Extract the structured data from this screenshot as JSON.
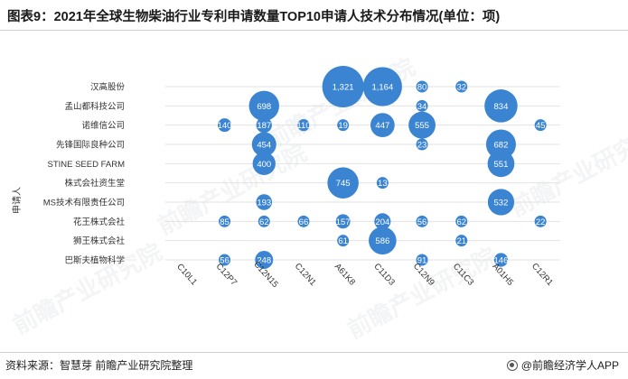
{
  "title": "图表9：2021年全球生物柴油行业专利申请数量TOP10申请人技术分布情况(单位：项)",
  "source": "资料来源：智慧芽 前瞻产业研究院整理",
  "brand": "@前瞻经济学人APP",
  "watermark": "前瞻产业研究院",
  "colors": {
    "bubble": "#3a84d2",
    "grid": "#e2e2e2",
    "text": "#333333"
  },
  "chart_data": {
    "type": "bubble",
    "ylabel": "申请人",
    "xlabel": "",
    "categories_y": [
      "汉高股份",
      "孟山都科技公司",
      "诺维信公司",
      "先锋国际良种公司",
      "STINE SEED FARM",
      "株式会社资生堂",
      "MS技术有限责任公司",
      "花王株式会社",
      "狮王株式会社",
      "巴斯夫植物科学"
    ],
    "categories_x": [
      "C10L1",
      "C12P7",
      "C12N15",
      "C12N1",
      "A61K8",
      "C11D3",
      "C12N9",
      "C11C3",
      "A01H5",
      "C12R1"
    ],
    "points": [
      {
        "y": "汉高股份",
        "x": "A61K8",
        "value": 1321
      },
      {
        "y": "汉高股份",
        "x": "C11D3",
        "value": 1164
      },
      {
        "y": "汉高股份",
        "x": "C12N9",
        "value": 80
      },
      {
        "y": "汉高股份",
        "x": "C11C3",
        "value": 32
      },
      {
        "y": "孟山都科技公司",
        "x": "C12N15",
        "value": 698
      },
      {
        "y": "孟山都科技公司",
        "x": "C12N9",
        "value": 34
      },
      {
        "y": "孟山都科技公司",
        "x": "A01H5",
        "value": 834
      },
      {
        "y": "诺维信公司",
        "x": "C12P7",
        "value": 140
      },
      {
        "y": "诺维信公司",
        "x": "C12N15",
        "value": 187
      },
      {
        "y": "诺维信公司",
        "x": "C12N1",
        "value": 110
      },
      {
        "y": "诺维信公司",
        "x": "A61K8",
        "value": 19
      },
      {
        "y": "诺维信公司",
        "x": "C11D3",
        "value": 447
      },
      {
        "y": "诺维信公司",
        "x": "C12N9",
        "value": 555
      },
      {
        "y": "诺维信公司",
        "x": "C12R1",
        "value": 45
      },
      {
        "y": "先锋国际良种公司",
        "x": "C12N15",
        "value": 454
      },
      {
        "y": "先锋国际良种公司",
        "x": "C12N9",
        "value": 23
      },
      {
        "y": "先锋国际良种公司",
        "x": "A01H5",
        "value": 682
      },
      {
        "y": "STINE SEED FARM",
        "x": "C12N15",
        "value": 400
      },
      {
        "y": "STINE SEED FARM",
        "x": "A01H5",
        "value": 551
      },
      {
        "y": "株式会社资生堂",
        "x": "A61K8",
        "value": 745
      },
      {
        "y": "株式会社资生堂",
        "x": "C11D3",
        "value": 13
      },
      {
        "y": "MS技术有限责任公司",
        "x": "C12N15",
        "value": 193
      },
      {
        "y": "MS技术有限责任公司",
        "x": "A01H5",
        "value": 532
      },
      {
        "y": "花王株式会社",
        "x": "C12P7",
        "value": 85
      },
      {
        "y": "花王株式会社",
        "x": "C12N15",
        "value": 62
      },
      {
        "y": "花王株式会社",
        "x": "C12N1",
        "value": 66
      },
      {
        "y": "花王株式会社",
        "x": "A61K8",
        "value": 157
      },
      {
        "y": "花王株式会社",
        "x": "C11D3",
        "value": 204
      },
      {
        "y": "花王株式会社",
        "x": "C12N9",
        "value": 56
      },
      {
        "y": "花王株式会社",
        "x": "C11C3",
        "value": 62
      },
      {
        "y": "花王株式会社",
        "x": "C12R1",
        "value": 22
      },
      {
        "y": "狮王株式会社",
        "x": "A61K8",
        "value": 61
      },
      {
        "y": "狮王株式会社",
        "x": "C11D3",
        "value": 586
      },
      {
        "y": "狮王株式会社",
        "x": "C11C3",
        "value": 21
      },
      {
        "y": "巴斯夫植物科学",
        "x": "C12P7",
        "value": 56
      },
      {
        "y": "巴斯夫植物科学",
        "x": "C12N15",
        "value": 248
      },
      {
        "y": "巴斯夫植物科学",
        "x": "C12N9",
        "value": 91
      },
      {
        "y": "巴斯夫植物科学",
        "x": "A01H5",
        "value": 146
      }
    ],
    "grid": true,
    "legend": "none"
  }
}
